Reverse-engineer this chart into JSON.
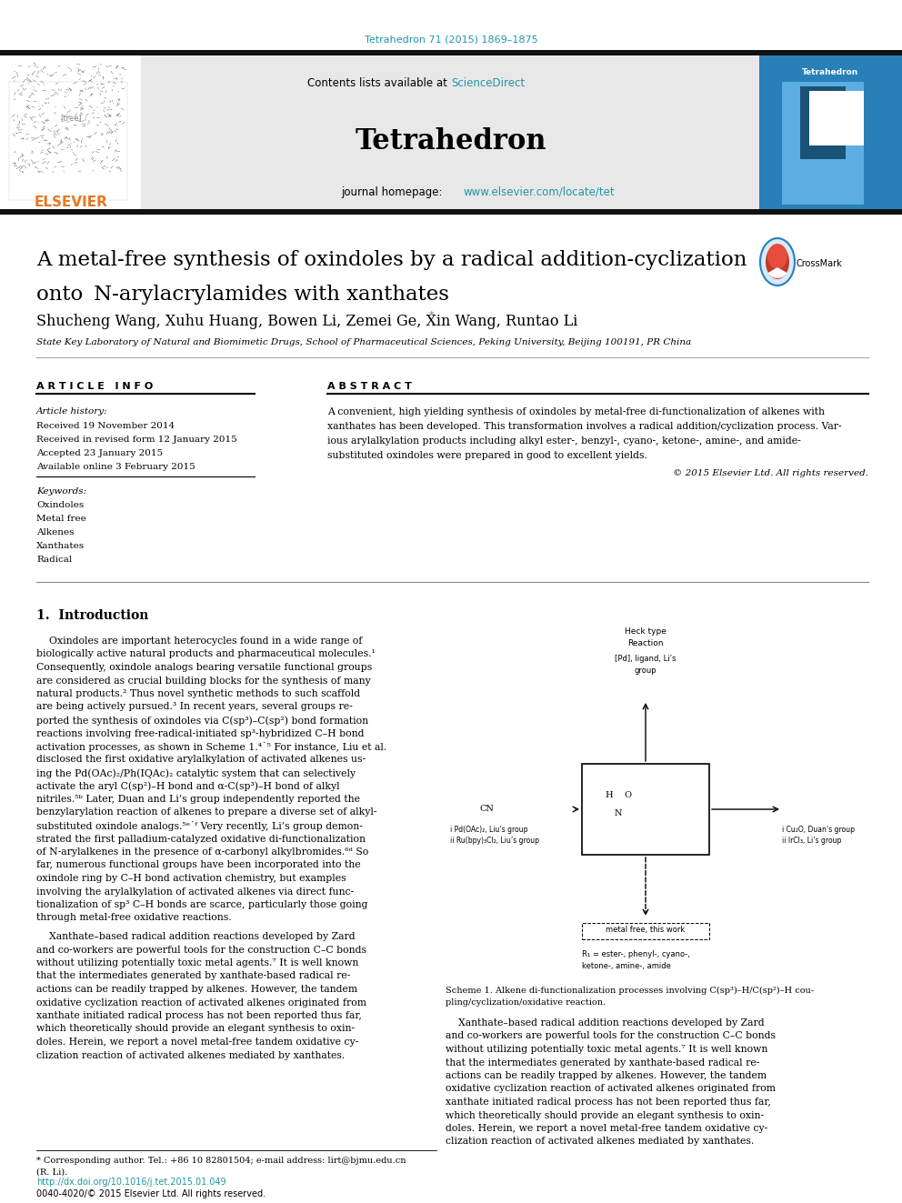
{
  "page_width": 9.92,
  "page_height": 13.23,
  "background_color": "#ffffff",
  "orange_color": "#e87722",
  "blue_link_color": "#2196a8",
  "journal_citation": "Tetrahedron 71 (2015) 1869–1875",
  "science_direct": "ScienceDirect",
  "journal_name": "Tetrahedron",
  "journal_url": "www.elsevier.com/locate/tet",
  "article_title_line1": "A metal-free synthesis of oxindoles by a radical addition-cyclization",
  "article_title_line2": "onto  N-arylacrylamides with xanthates",
  "authors": "Shucheng Wang, Xuhu Huang, Bowen Li, Zemei Ge, Xin Wang, Runtao Li ",
  "authors_star": "*",
  "affiliation": "State Key Laboratory of Natural and Biomimetic Drugs, School of Pharmaceutical Sciences, Peking University, Beijing 100191, PR China",
  "article_info_label": "A R T I C L E   I N F O",
  "abstract_label": "A B S T R A C T",
  "article_history_label": "Article history:",
  "received": "Received 19 November 2014",
  "revised": "Received in revised form 12 January 2015",
  "accepted": "Accepted 23 January 2015",
  "online": "Available online 3 February 2015",
  "keywords_label": "Keywords:",
  "keywords": [
    "Oxindoles",
    "Metal free",
    "Alkenes",
    "Xanthates",
    "Radical"
  ],
  "copyright": "© 2015 Elsevier Ltd. All rights reserved.",
  "footer_corresponding": "* Corresponding author. Tel.: +86 10 82801504; e-mail address: lirt@bjmu.edu.cn",
  "footer_corresponding2": "(R. Li).",
  "footer_doi": "http://dx.doi.org/10.1016/j.tet.2015.01.049",
  "footer_copyright": "0040-4020/© 2015 Elsevier Ltd. All rights reserved.",
  "header_bg": "#e8e8e8",
  "top_bar_color": "#111111"
}
